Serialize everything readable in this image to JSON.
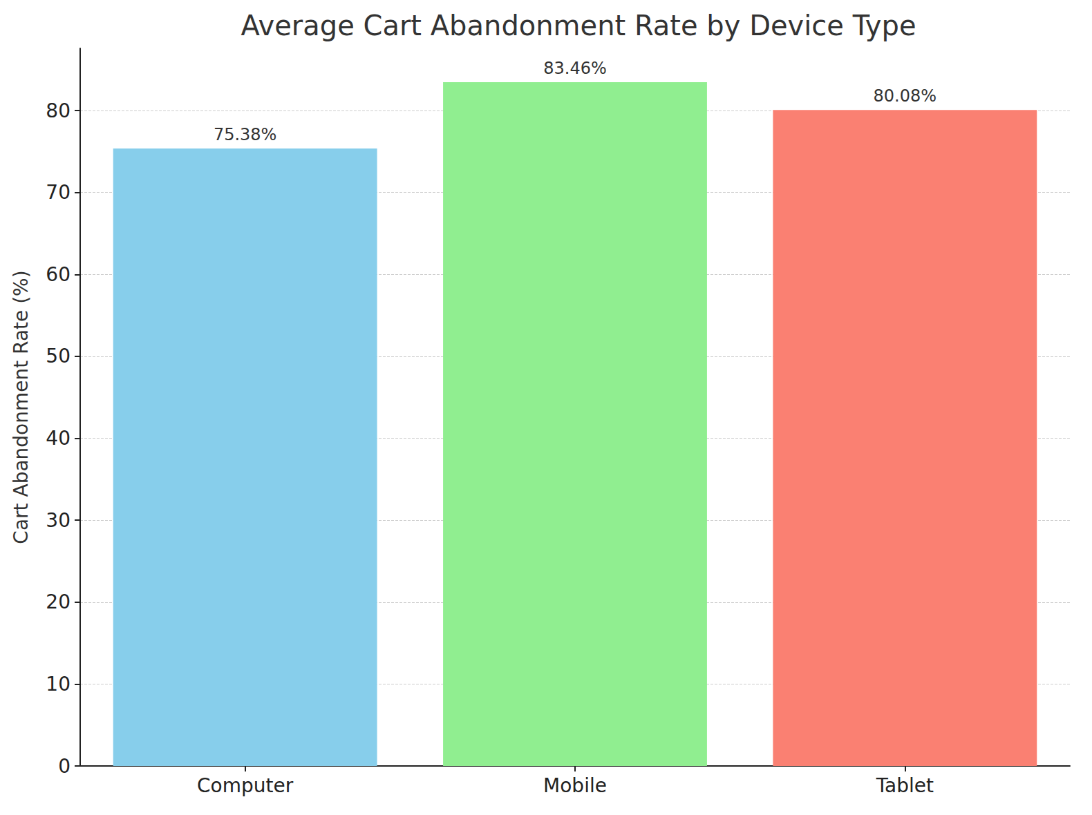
{
  "chart_data": {
    "type": "bar",
    "title": "Average Cart Abandonment Rate by Device Type",
    "y_label": "Cart Abandonment Rate (%)",
    "categories": [
      "Computer",
      "Mobile",
      "Tablet"
    ],
    "values": [
      75.38,
      83.46,
      80.08
    ],
    "value_labels": [
      "75.38%",
      "83.46%",
      "80.08%"
    ],
    "colors": [
      "#87ceeb",
      "#90ee90",
      "#fa8072"
    ],
    "ylim": [
      0,
      87.6
    ],
    "yticks": [
      0,
      10,
      20,
      30,
      40,
      50,
      60,
      70,
      80
    ],
    "grid": true,
    "data_labels": true
  }
}
